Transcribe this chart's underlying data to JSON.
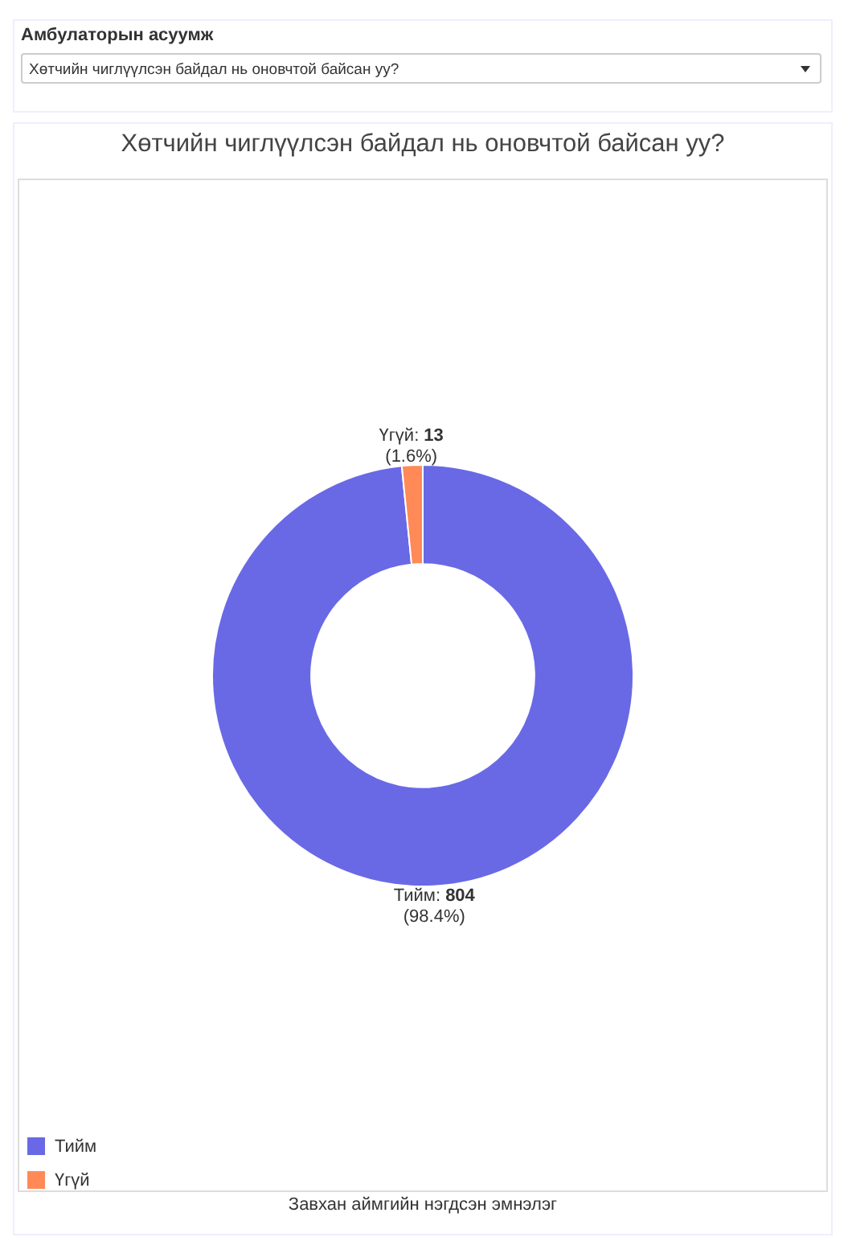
{
  "chart_data": {
    "type": "donut",
    "title": "Хөтчийн чиглүүлсэн байдал нь оновчтой байсан уу?",
    "categories": [
      "Тийм",
      "Үгүй"
    ],
    "values": [
      804,
      13
    ],
    "colors": [
      "#6969e6",
      "#ff8a57"
    ],
    "value_labels": [
      "Тийм: 804\n(98.4%)",
      "Үгүй: 13\n(1.6%)"
    ],
    "legend": "bottom left",
    "annotations": [
      "Амбулаторын асуумж",
      "Хөтчийн чиглүүлсэн байдал нь оновчтой байсан уу?",
      "Завхан аймгийн нэгдсэн эмнэлэг"
    ]
  }
}
